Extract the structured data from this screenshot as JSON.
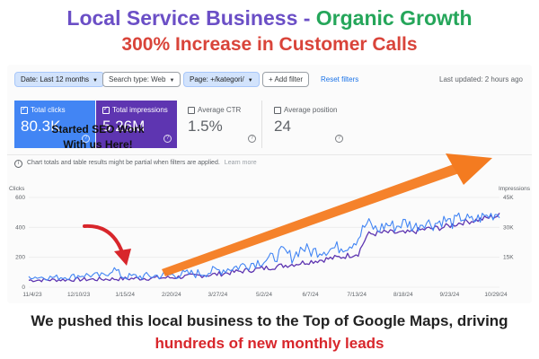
{
  "headline": {
    "line1_part1": "Local Service Business - ",
    "line1_part2": "Organic Growth",
    "line2": "300% Increase in Customer Calls"
  },
  "filters": {
    "date": "Date: Last 12 months",
    "search_type": "Search type: Web",
    "page": "Page: +/kategori/",
    "add_filter": "Add filter",
    "reset": "Reset filters",
    "last_updated": "Last updated: 2 hours ago"
  },
  "cards": [
    {
      "label": "Total clicks",
      "value": "80.3K",
      "selected": true
    },
    {
      "label": "Total impressions",
      "value": "5.26M",
      "selected": true
    },
    {
      "label": "Average CTR",
      "value": "1.5%",
      "selected": false
    },
    {
      "label": "Average position",
      "value": "24",
      "selected": false
    }
  ],
  "notice": {
    "text": "Chart totals and table results might be partial when filters are applied.",
    "link": "Learn more"
  },
  "annotation": {
    "line1": "Started SEO Work",
    "line2": "With us Here!"
  },
  "colors": {
    "clicks": "#4285f4",
    "impressions": "#5e35b1",
    "arrow": "#f47b20",
    "annotation_arrow": "#d8262b"
  },
  "chart_data": {
    "type": "line",
    "left_axis_title": "Clicks",
    "right_axis_title": "Impressions",
    "left_ticks": [
      "600",
      "400",
      "200",
      "0"
    ],
    "right_ticks": [
      "45K",
      "30K",
      "15K"
    ],
    "x_ticks": [
      "11/4/23",
      "12/10/23",
      "1/15/24",
      "2/20/24",
      "3/27/24",
      "5/2/24",
      "6/7/24",
      "7/13/24",
      "8/18/24",
      "9/23/24",
      "10/29/24"
    ],
    "ylim_left": [
      0,
      600
    ],
    "ylim_right": [
      0,
      45000
    ],
    "series": [
      {
        "name": "Total clicks",
        "axis": "left",
        "anchors": [
          [
            0,
            70
          ],
          [
            4,
            65
          ],
          [
            8,
            68
          ],
          [
            12,
            82
          ],
          [
            16,
            75
          ],
          [
            18,
            125
          ],
          [
            20,
            70
          ],
          [
            24,
            72
          ],
          [
            28,
            78
          ],
          [
            32,
            85
          ],
          [
            36,
            92
          ],
          [
            40,
            110
          ],
          [
            44,
            135
          ],
          [
            48,
            165
          ],
          [
            52,
            195
          ],
          [
            54,
            240
          ],
          [
            56,
            200
          ],
          [
            58,
            265
          ],
          [
            60,
            238
          ],
          [
            64,
            255
          ],
          [
            68,
            280
          ],
          [
            70,
            330
          ],
          [
            71,
            390
          ],
          [
            72,
            430
          ],
          [
            74,
            380
          ],
          [
            76,
            420
          ],
          [
            78,
            405
          ],
          [
            80,
            435
          ],
          [
            82,
            400
          ],
          [
            84,
            440
          ],
          [
            86,
            420
          ],
          [
            88,
            450
          ],
          [
            90,
            430
          ],
          [
            92,
            470
          ],
          [
            94,
            440
          ],
          [
            96,
            465
          ],
          [
            98,
            480
          ],
          [
            100,
            500
          ]
        ],
        "noise": 45
      },
      {
        "name": "Total impressions",
        "axis": "right",
        "anchors": [
          [
            0,
            3500
          ],
          [
            10,
            3800
          ],
          [
            20,
            4200
          ],
          [
            30,
            4800
          ],
          [
            40,
            6500
          ],
          [
            50,
            9500
          ],
          [
            56,
            11500
          ],
          [
            60,
            13000
          ],
          [
            66,
            15000
          ],
          [
            70,
            17000
          ],
          [
            72,
            26500
          ],
          [
            76,
            27500
          ],
          [
            80,
            27000
          ],
          [
            84,
            29000
          ],
          [
            88,
            30000
          ],
          [
            92,
            32500
          ],
          [
            96,
            34000
          ],
          [
            100,
            36000
          ]
        ],
        "noise": 1500
      }
    ]
  }
}
